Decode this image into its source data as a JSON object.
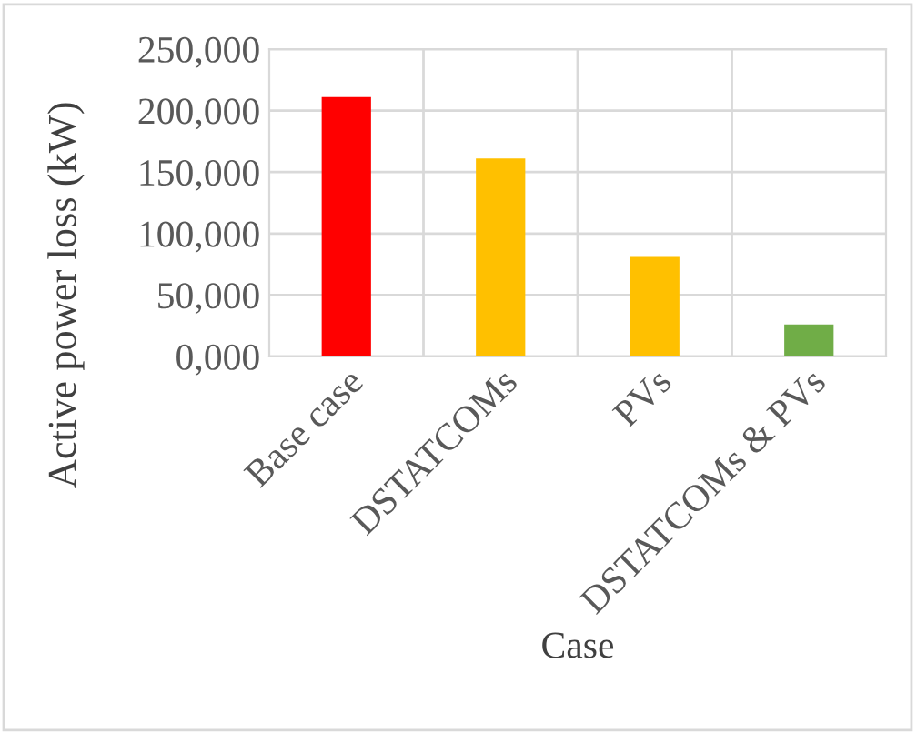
{
  "chart_data": {
    "type": "bar",
    "xlabel": "Case",
    "ylabel": "Active power loss (kW)",
    "categories": [
      "Base case",
      "DSTATCOMs",
      "PVs",
      "DSTATCOMs & PVs"
    ],
    "values": [
      211000,
      161000,
      81000,
      26000
    ],
    "colors": [
      "#ff0000",
      "#ffc000",
      "#ffc000",
      "#70ad47"
    ],
    "ylim": [
      0,
      250000
    ],
    "yticks": [
      {
        "value": 0,
        "label": "0,000"
      },
      {
        "value": 50000,
        "label": "50,000"
      },
      {
        "value": 100000,
        "label": "100,000"
      },
      {
        "value": 150000,
        "label": "150,000"
      },
      {
        "value": 200000,
        "label": "200,000"
      },
      {
        "value": 250000,
        "label": "250,000"
      }
    ],
    "grid": true
  }
}
